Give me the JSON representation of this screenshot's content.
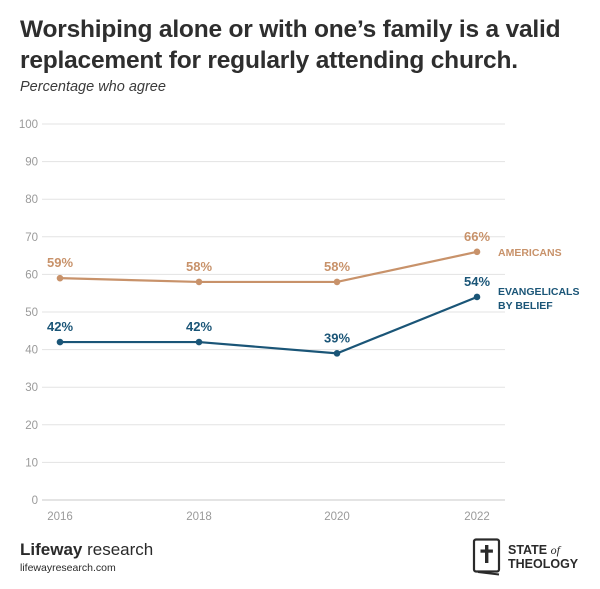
{
  "title_lines": [
    "Worshiping alone or with one’s family is a valid",
    "replacement for regularly attending church."
  ],
  "subtitle": "Percentage who agree",
  "chart_data": {
    "type": "line",
    "title": "Worshiping alone or with one’s family is a valid replacement for regularly attending church.",
    "subtitle": "Percentage who agree",
    "x": [
      "2016",
      "2018",
      "2020",
      "2022"
    ],
    "ylim": [
      0,
      100
    ],
    "yticks": [
      0,
      10,
      20,
      30,
      40,
      50,
      60,
      70,
      80,
      90,
      100
    ],
    "grid": true,
    "series": [
      {
        "name": "AMERICANS",
        "label_lines": [
          "AMERICANS"
        ],
        "color": "#c8926a",
        "values": [
          59,
          58,
          58,
          66
        ],
        "data_labels": [
          "59%",
          "58%",
          "58%",
          "66%"
        ]
      },
      {
        "name": "EVANGELICALS BY BELIEF",
        "label_lines": [
          "EVANGELICALS",
          "BY BELIEF"
        ],
        "color": "#1a5577",
        "values": [
          42,
          42,
          39,
          54
        ],
        "data_labels": [
          "42%",
          "42%",
          "39%",
          "54%"
        ]
      }
    ]
  },
  "footer": {
    "brand_bold": "Lifeway",
    "brand_light": " research",
    "url": "lifewayresearch.com",
    "logo_line1": "STATE",
    "logo_of": "of",
    "logo_line2": "THEOLOGY"
  }
}
